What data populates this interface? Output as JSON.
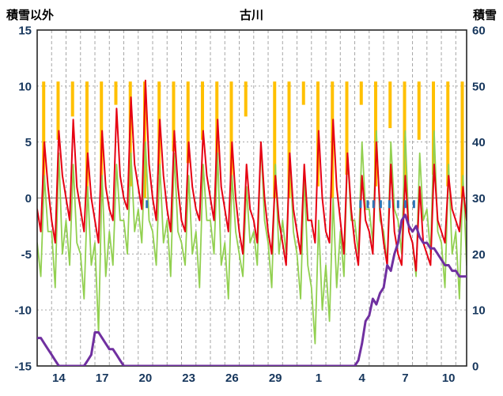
{
  "chart_data": {
    "type": "line",
    "title": "古川",
    "left_axis_label": "積雪以外",
    "right_axis_label": "積雪",
    "left_axis": {
      "min": -15,
      "max": 15,
      "ticks": [
        15,
        10,
        5,
        0,
        -5,
        -10,
        -15
      ]
    },
    "right_axis": {
      "min": 0,
      "max": 60,
      "ticks": [
        60,
        50,
        40,
        30,
        20,
        10,
        0
      ]
    },
    "x_axis": {
      "min": 0,
      "max": 29.75,
      "day_grid_step": 1,
      "tick_positions": [
        1.5,
        4.5,
        7.5,
        10.5,
        13.5,
        16.5,
        19.5,
        22.5,
        25.5,
        28.5
      ],
      "tick_labels": [
        "14",
        "17",
        "20",
        "23",
        "26",
        "29",
        "1",
        "4",
        "7",
        "10"
      ]
    },
    "x_step_days": 0.25,
    "grid": {
      "color": "#a6a6a6",
      "zero_line_color": "#8c8c8c",
      "border_color": "#262626"
    },
    "series": [
      {
        "name": "green-series",
        "color": "#92d050",
        "axis": "left",
        "width": 1.8,
        "values": [
          -4,
          -7,
          2,
          -3,
          -3,
          -8,
          4,
          -5,
          -2,
          -6,
          3,
          -4,
          -5,
          -9,
          1,
          -6,
          -4,
          -12,
          2,
          -7,
          -3,
          -6,
          3,
          -2,
          -2,
          -5,
          4,
          -3,
          -1,
          -4,
          5,
          -2,
          -3,
          -6,
          3,
          -4,
          -2,
          -7,
          4,
          -3,
          -4,
          -6,
          2,
          -5,
          -3,
          -8,
          3,
          -2,
          -2,
          -5,
          4,
          -6,
          -4,
          -9,
          2,
          -3,
          -5,
          -7,
          1,
          -4,
          -3,
          -6,
          5,
          -2,
          -4,
          -8,
          3,
          -5,
          -2,
          -5,
          4,
          -3,
          -5,
          -9,
          2,
          -6,
          -8,
          -13,
          -2,
          -10,
          -6,
          -11,
          0,
          -8,
          -3,
          -7,
          4,
          -2,
          -2,
          -5,
          5,
          -1,
          -1,
          -4,
          6,
          -2,
          -3,
          -6,
          5,
          -1,
          -2,
          -5,
          6,
          -3,
          -4,
          -7,
          4,
          -2,
          -1,
          -5,
          6,
          -3,
          -4,
          -8,
          3,
          -5,
          -3,
          -9,
          2,
          -6
        ]
      },
      {
        "name": "temperature-red",
        "color": "#e60012",
        "axis": "left",
        "width": 2,
        "values": [
          -1,
          -3,
          5,
          1,
          -2,
          -4,
          6,
          2,
          0,
          -2,
          7,
          1,
          -1,
          -3,
          4,
          0,
          -2,
          -4,
          6,
          1,
          -1,
          -2,
          8,
          2,
          0,
          -1,
          9,
          3,
          1,
          -1,
          10.5,
          3,
          0,
          -2,
          7,
          2,
          -1,
          -3,
          6,
          1,
          -2,
          -3,
          5,
          1,
          -1,
          -2,
          6,
          2,
          0,
          -2,
          7,
          1,
          -1,
          -3,
          5,
          0,
          -3,
          -5,
          3,
          -1,
          -2,
          -4,
          5,
          0,
          -3,
          -5,
          2,
          -2,
          -4,
          -6,
          4,
          -1,
          -3,
          -5,
          3,
          -2,
          -2,
          -4,
          6,
          0,
          -3,
          -4,
          7,
          1,
          -2,
          -5,
          4,
          -1,
          -4,
          -6,
          2,
          -2,
          -3,
          -5,
          5,
          -1,
          -4,
          -6,
          3,
          -3,
          -5,
          -6,
          2,
          -3,
          -4,
          -6.5,
          1,
          -4,
          -5,
          -6,
          3,
          -2,
          -3,
          -4,
          2,
          -1,
          -2,
          -3,
          1,
          -2
        ]
      },
      {
        "name": "snow-depth-purple",
        "color": "#7030a0",
        "axis": "right",
        "width": 3,
        "values": [
          5,
          5,
          4,
          3,
          2,
          1,
          0,
          0,
          0,
          0,
          0,
          0,
          0,
          0,
          1,
          2,
          6,
          6,
          5,
          4,
          3,
          3,
          2,
          1,
          0,
          0,
          0,
          0,
          0,
          0,
          0,
          0,
          0,
          0,
          0,
          0,
          0,
          0,
          0,
          0,
          0,
          0,
          0,
          0,
          0,
          0,
          0,
          0,
          0,
          0,
          0,
          0,
          0,
          0,
          0,
          0,
          0,
          0,
          0,
          0,
          0,
          0,
          0,
          0,
          0,
          0,
          0,
          0,
          0,
          0,
          0,
          0,
          0,
          0,
          0,
          0,
          0,
          0,
          0,
          0,
          0,
          0,
          0,
          0,
          0,
          0,
          0,
          0,
          0,
          1,
          4,
          8,
          9,
          12,
          11,
          13,
          14,
          18,
          17,
          20,
          22,
          26,
          27,
          25,
          24,
          25,
          23,
          22,
          22,
          21,
          21,
          20,
          19,
          18,
          18,
          17,
          17,
          16,
          16,
          16
        ]
      }
    ],
    "sunshine_bars": {
      "name": "sunshine-orange",
      "color": "#ffc000",
      "top": 10.4,
      "unit_scale": 1.04,
      "daily_values": [
        9,
        5,
        3,
        10,
        10,
        2,
        9,
        10,
        8,
        6,
        7,
        5,
        8,
        9,
        3,
        0,
        10,
        10,
        2,
        9,
        10,
        8,
        2,
        9,
        4,
        9,
        5,
        8,
        9,
        10
      ]
    },
    "blue_ticks": {
      "name": "precip-blue-ticks",
      "color": "#2e75b6",
      "positions": [
        7.6,
        22.4,
        22.9,
        23.3,
        23.8,
        24.4,
        25.0,
        25.5,
        26.1
      ],
      "top": -0.2,
      "bottom": -0.9
    }
  }
}
